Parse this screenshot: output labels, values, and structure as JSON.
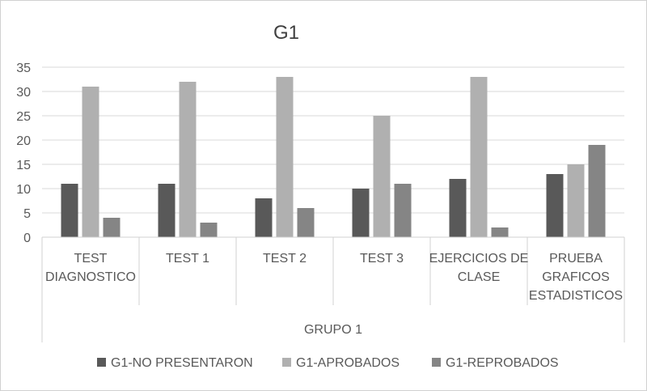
{
  "chart_data": {
    "type": "bar",
    "title": "G1",
    "group_label": "GRUPO 1",
    "categories": [
      [
        "TEST",
        "DIAGNOSTICO"
      ],
      [
        "TEST 1"
      ],
      [
        "TEST 2"
      ],
      [
        "TEST 3"
      ],
      [
        "EJERCICIOS DE",
        "CLASE"
      ],
      [
        "PRUEBA",
        "GRAFICOS",
        "ESTADISTICOS"
      ]
    ],
    "series": [
      {
        "name": "G1-NO PRESENTARON",
        "color": "#595959",
        "values": [
          11,
          11,
          8,
          10,
          12,
          13
        ]
      },
      {
        "name": "G1-APROBADOS",
        "color": "#b0b0b0",
        "values": [
          31,
          32,
          33,
          25,
          33,
          15
        ]
      },
      {
        "name": "G1-REPROBADOS",
        "color": "#858585",
        "values": [
          4,
          3,
          6,
          11,
          2,
          19
        ]
      }
    ],
    "ylim": [
      0,
      35
    ],
    "yticks": [
      0,
      5,
      10,
      15,
      20,
      25,
      30,
      35
    ],
    "grid": true,
    "legend_position": "bottom"
  }
}
